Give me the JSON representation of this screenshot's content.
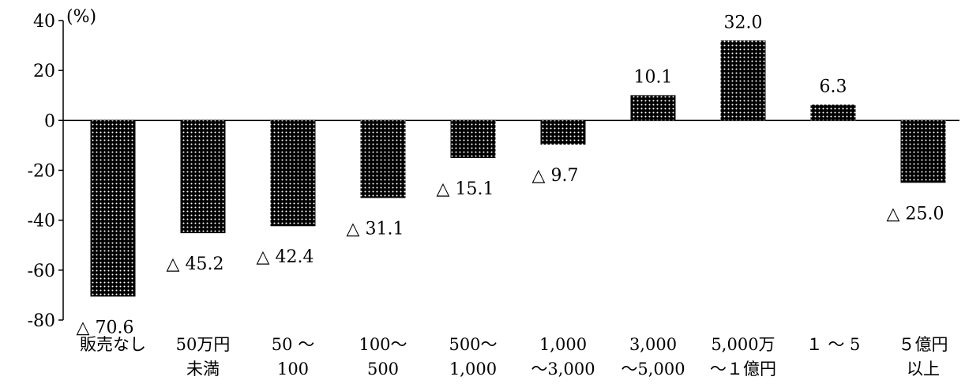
{
  "chart_data": {
    "type": "bar",
    "unit_label": "(%)",
    "ylim": [
      -80,
      40
    ],
    "yticks": [
      "40",
      "20",
      "0",
      "-20",
      "-40",
      "-60",
      "-80"
    ],
    "grid": false,
    "categories": [
      [
        "販売なし",
        ""
      ],
      [
        "50万円",
        "未満"
      ],
      [
        "50 ～",
        "100"
      ],
      [
        "100～",
        "500"
      ],
      [
        "500～",
        "1,000"
      ],
      [
        "1,000",
        "～3,000"
      ],
      [
        "3,000",
        "～5,000"
      ],
      [
        "5,000万",
        "～１億円"
      ],
      [
        "１ ～ 5",
        ""
      ],
      [
        "５億円",
        "以上"
      ]
    ],
    "values": [
      -70.6,
      -45.2,
      -42.4,
      -31.1,
      -15.1,
      -9.7,
      10.1,
      32.0,
      6.3,
      -25.0
    ],
    "data_labels": [
      "△ 70.6",
      "△ 45.2",
      "△ 42.4",
      "△ 31.1",
      "△ 15.1",
      "△ 9.7",
      "10.1",
      "32.0",
      "6.3",
      "△ 25.0"
    ]
  }
}
